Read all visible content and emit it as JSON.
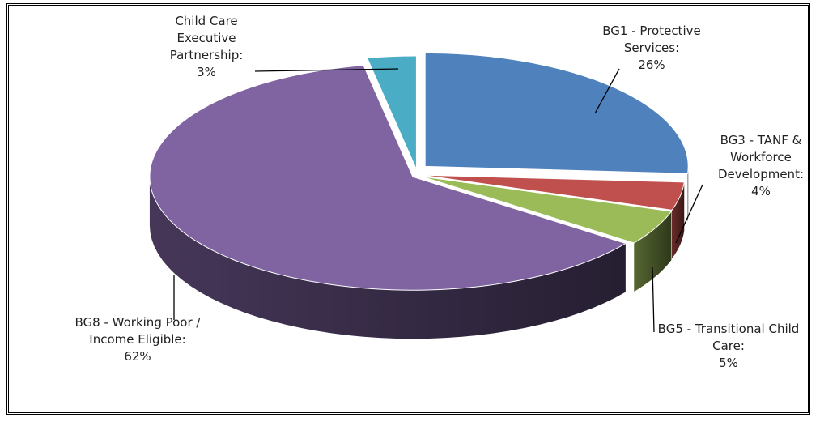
{
  "chart_data": {
    "type": "pie3d",
    "categories": [
      "BG1 - Protective Services:",
      "BG3 - TANF & Workforce Development:",
      "BG5 - Transitional Child Care:",
      "BG8 - Working Poor / Income Eligible:",
      "Child Care Executive Partnership:"
    ],
    "values": [
      26,
      4,
      5,
      62,
      3
    ],
    "value_labels": [
      "26%",
      "4%",
      "5%",
      "62%",
      "3%"
    ],
    "colors": [
      "#4f81bd",
      "#c0504d",
      "#9bbb59",
      "#8064a2",
      "#4bacc6"
    ]
  }
}
